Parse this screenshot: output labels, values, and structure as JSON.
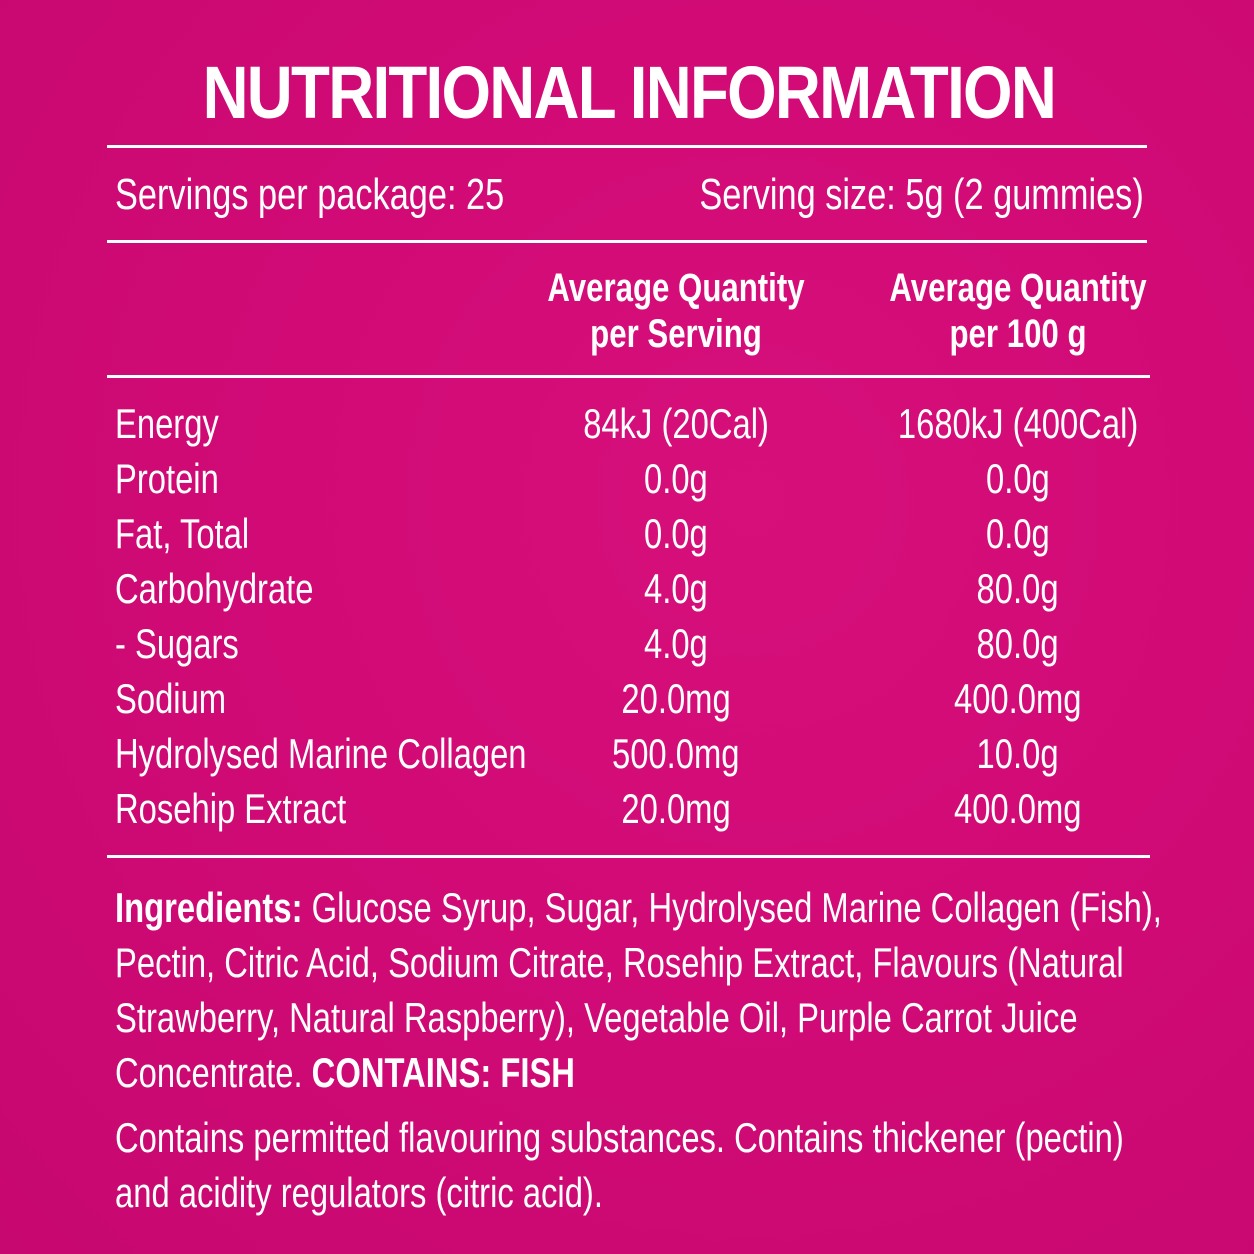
{
  "title": "NUTRITIONAL INFORMATION",
  "servings_per_package": "Servings per package: 25",
  "serving_size": "Serving size: 5g (2 gummies)",
  "columns": {
    "per_serving_line1": "Average Quantity",
    "per_serving_line2": "per Serving",
    "per_100g_line1": "Average Quantity",
    "per_100g_line2": "per 100 g"
  },
  "rows": [
    {
      "label": "Energy",
      "per_serving": "84kJ (20Cal)",
      "per_100g": "1680kJ (400Cal)"
    },
    {
      "label": "Protein",
      "per_serving": "0.0g",
      "per_100g": "0.0g"
    },
    {
      "label": "Fat, Total",
      "per_serving": "0.0g",
      "per_100g": "0.0g"
    },
    {
      "label": "Carbohydrate",
      "per_serving": "4.0g",
      "per_100g": "80.0g"
    },
    {
      "label": "- Sugars",
      "per_serving": "4.0g",
      "per_100g": "80.0g"
    },
    {
      "label": "Sodium",
      "per_serving": "20.0mg",
      "per_100g": "400.0mg"
    },
    {
      "label": "Hydrolysed Marine Collagen",
      "per_serving": "500.0mg",
      "per_100g": "10.0g"
    },
    {
      "label": "Rosehip Extract",
      "per_serving": "20.0mg",
      "per_100g": "400.0mg"
    }
  ],
  "ingredients": {
    "heading": "Ingredients:",
    "line1": "Glucose Syrup, Sugar, Hydrolysed Marine Collagen (Fish),",
    "line2": "Pectin, Citric Acid, Sodium Citrate, Rosehip Extract, Flavours (Natural",
    "line3": "Strawberry, Natural Raspberry), Vegetable Oil, Purple Carrot Juice",
    "line4": "Concentrate.",
    "contains": "CONTAINS: FISH"
  },
  "notes": {
    "line1": "Contains permitted flavouring substances. Contains thickener (pectin)",
    "line2": "and acidity regulators (citric acid)."
  },
  "colors": {
    "background": "#d10a76",
    "text": "#ffffff"
  }
}
